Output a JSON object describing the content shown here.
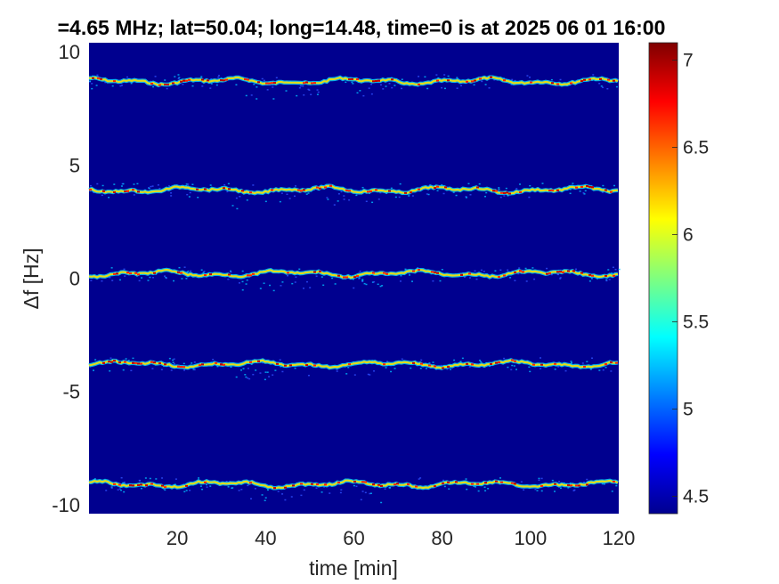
{
  "chart_data": {
    "type": "heatmap",
    "title": "=4.65 MHz;  lat=50.04; long=14.48, time=0 is at 2025 06 01 16:00",
    "xlabel": "time [min]",
    "ylabel": "Δf [Hz]",
    "xlim": [
      0,
      120
    ],
    "ylim": [
      -10.4,
      10.4
    ],
    "xticks": [
      20,
      40,
      60,
      80,
      100,
      120
    ],
    "yticks": [
      10,
      5,
      0,
      -5,
      -10
    ],
    "clim": [
      4.4,
      7.1
    ],
    "colorbar_ticks": [
      7,
      6.5,
      6,
      5.5,
      5,
      4.5
    ],
    "colormap": "jet",
    "background_color": "#00008f",
    "bands": [
      {
        "center_hz": 8.7,
        "label": "band at +8.7 Hz"
      },
      {
        "center_hz": 3.9,
        "label": "band at +3.9 Hz"
      },
      {
        "center_hz": 0.2,
        "label": "band at +0.2 Hz"
      },
      {
        "center_hz": -3.8,
        "label": "band at -3.8 Hz"
      },
      {
        "center_hz": -9.1,
        "label": "band at -9.1 Hz"
      }
    ]
  }
}
